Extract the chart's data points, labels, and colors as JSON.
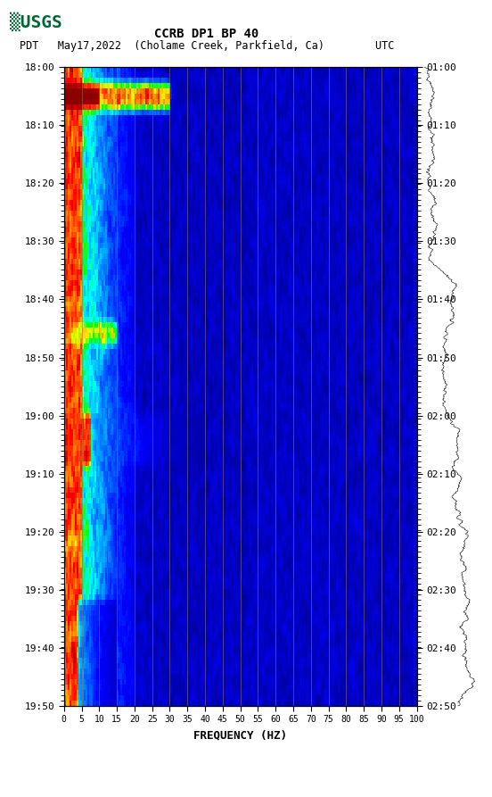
{
  "title_line1": "CCRB DP1 BP 40",
  "title_line2": "PDT   May17,2022  (Cholame Creek, Parkfield, Ca)        UTC",
  "xlabel": "FREQUENCY (HZ)",
  "x_ticks": [
    0,
    5,
    10,
    15,
    20,
    25,
    30,
    35,
    40,
    45,
    50,
    55,
    60,
    65,
    70,
    75,
    80,
    85,
    90,
    95,
    100
  ],
  "freq_max": 100,
  "freq_min": 0,
  "time_labels_left": [
    "18:00",
    "18:10",
    "18:20",
    "18:30",
    "18:40",
    "18:50",
    "19:00",
    "19:10",
    "19:20",
    "19:30",
    "19:40",
    "19:50"
  ],
  "time_labels_right": [
    "01:00",
    "01:10",
    "01:20",
    "01:30",
    "01:40",
    "01:50",
    "02:00",
    "02:10",
    "02:20",
    "02:30",
    "02:40",
    "02:50"
  ],
  "n_time_steps": 120,
  "n_freq_bins": 200,
  "background_color": "#ffffff",
  "spectrogram_bg": "#0000cc",
  "vertical_line_color": "#8B7355",
  "vertical_line_positions": [
    5,
    10,
    15,
    20,
    25,
    30,
    35,
    40,
    45,
    50,
    55,
    60,
    65,
    70,
    75,
    80,
    85,
    90,
    95,
    100
  ],
  "usgs_logo_color": "#006633",
  "waveform_color": "#000000",
  "fig_width": 5.52,
  "fig_height": 8.93
}
